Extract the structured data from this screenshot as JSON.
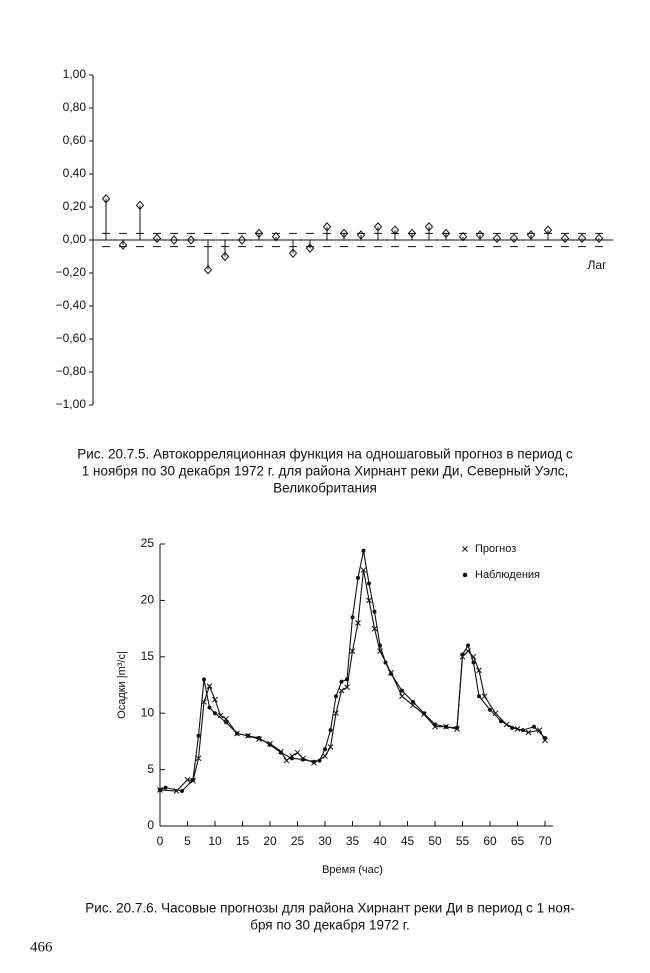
{
  "chart_data": [
    {
      "type": "stem",
      "marker": "diamond",
      "x_label": "Лаг",
      "categories": [
        null,
        null,
        null,
        null,
        null,
        null,
        null,
        null,
        null,
        null,
        null,
        null,
        null,
        null,
        null,
        null,
        null,
        null,
        null,
        null,
        null,
        null,
        null,
        null,
        null,
        null,
        null,
        null,
        null,
        null
      ],
      "values": [
        0.25,
        -0.03,
        0.21,
        0.01,
        0.0,
        0.0,
        -0.18,
        -0.1,
        0.0,
        0.04,
        0.02,
        -0.08,
        -0.05,
        0.08,
        0.04,
        0.03,
        0.08,
        0.06,
        0.04,
        0.08,
        0.04,
        0.02,
        0.03,
        0.01,
        0.01,
        0.03,
        0.06,
        0.01,
        0.01,
        0.01
      ],
      "confidence_limits": [
        -0.04,
        0.04
      ],
      "ylim": [
        -1,
        1
      ],
      "yticks": [
        {
          "value": 1,
          "label": "1,00"
        },
        {
          "value": 0.8,
          "label": "0,80"
        },
        {
          "value": 0.6,
          "label": "0,60"
        },
        {
          "value": 0.4,
          "label": "0,40"
        },
        {
          "value": 0.2,
          "label": "0,20"
        },
        {
          "value": 0,
          "label": "0,00"
        },
        {
          "value": -0.2,
          "label": "−0,20"
        },
        {
          "value": -0.4,
          "label": "−0,40"
        },
        {
          "value": -0.6,
          "label": "−0,60"
        },
        {
          "value": -0.8,
          "label": "−0,80"
        },
        {
          "value": -1,
          "label": "−1,00"
        }
      ]
    },
    {
      "type": "line",
      "x_label": "Время (час)",
      "y_label": "Осадки |m³/c|",
      "legend": "upper right",
      "xlim": [
        0,
        70
      ],
      "xticks": [
        0,
        5,
        10,
        15,
        20,
        25,
        30,
        35,
        40,
        45,
        50,
        55,
        60,
        65,
        70
      ],
      "ylim": [
        0,
        25
      ],
      "yticks": [
        0,
        5,
        10,
        15,
        20,
        25
      ],
      "series": [
        {
          "name": "Прогноз",
          "marker": "x",
          "x": [
            0,
            3,
            5,
            6,
            7,
            8,
            9,
            10,
            11,
            12,
            14,
            16,
            18,
            20,
            22,
            23,
            24,
            25,
            26,
            28,
            30,
            31,
            32,
            33,
            34,
            35,
            36,
            37,
            38,
            39,
            40,
            42,
            44,
            46,
            48,
            50,
            52,
            54,
            55,
            56,
            57,
            58,
            59,
            61,
            63,
            65,
            67,
            69,
            70
          ],
          "values": [
            3.2,
            3.1,
            4.1,
            4.0,
            6.0,
            11.0,
            12.4,
            11.2,
            9.8,
            9.5,
            8.2,
            8.0,
            7.7,
            7.3,
            6.6,
            5.8,
            6.2,
            6.5,
            6.0,
            5.6,
            6.2,
            7.0,
            10.0,
            12.0,
            12.3,
            15.5,
            18.0,
            22.7,
            20.0,
            17.5,
            15.5,
            13.6,
            11.5,
            10.7,
            9.9,
            8.8,
            8.8,
            8.6,
            15.0,
            15.5,
            15.0,
            13.8,
            11.5,
            10.0,
            9.0,
            8.6,
            8.3,
            8.5,
            7.6
          ]
        },
        {
          "name": "Наблюдения",
          "marker": "dot",
          "x": [
            0,
            1,
            4,
            6,
            7,
            8,
            9,
            10,
            12,
            14,
            16,
            18,
            20,
            22,
            24,
            26,
            28,
            29,
            30,
            31,
            32,
            33,
            34,
            35,
            36,
            37,
            38,
            39,
            40,
            41,
            42,
            44,
            46,
            48,
            50,
            52,
            54,
            55,
            56,
            57,
            58,
            60,
            62,
            64,
            66,
            68,
            70
          ],
          "values": [
            3.2,
            3.4,
            3.1,
            4.1,
            8.0,
            13.0,
            10.5,
            10.0,
            9.2,
            8.2,
            8.0,
            7.8,
            7.2,
            6.5,
            6.0,
            5.9,
            5.7,
            5.8,
            6.8,
            8.5,
            11.5,
            12.8,
            13.0,
            18.5,
            22.0,
            24.4,
            21.5,
            19.0,
            16.0,
            14.5,
            13.5,
            12.0,
            11.0,
            10.0,
            9.0,
            8.8,
            8.7,
            15.2,
            16.0,
            14.5,
            11.5,
            10.3,
            9.3,
            8.7,
            8.5,
            8.8,
            7.8
          ]
        }
      ]
    }
  ],
  "captions": [
    [
      "Рис. 20.7.5. Автокорреляционная функция на одношаговый прогноз в период с",
      "1 ноября по 30 декабря 1972 г. для района Хирнант реки Ди, Северный Уэлс,",
      "Великобритания"
    ],
    [
      "Рис. 20.7.6. Часовые прогнозы для района Хирнант реки Ди в период с 1 ноя-",
      "бря по 30 декабря 1972 г."
    ]
  ],
  "page_number": "466"
}
